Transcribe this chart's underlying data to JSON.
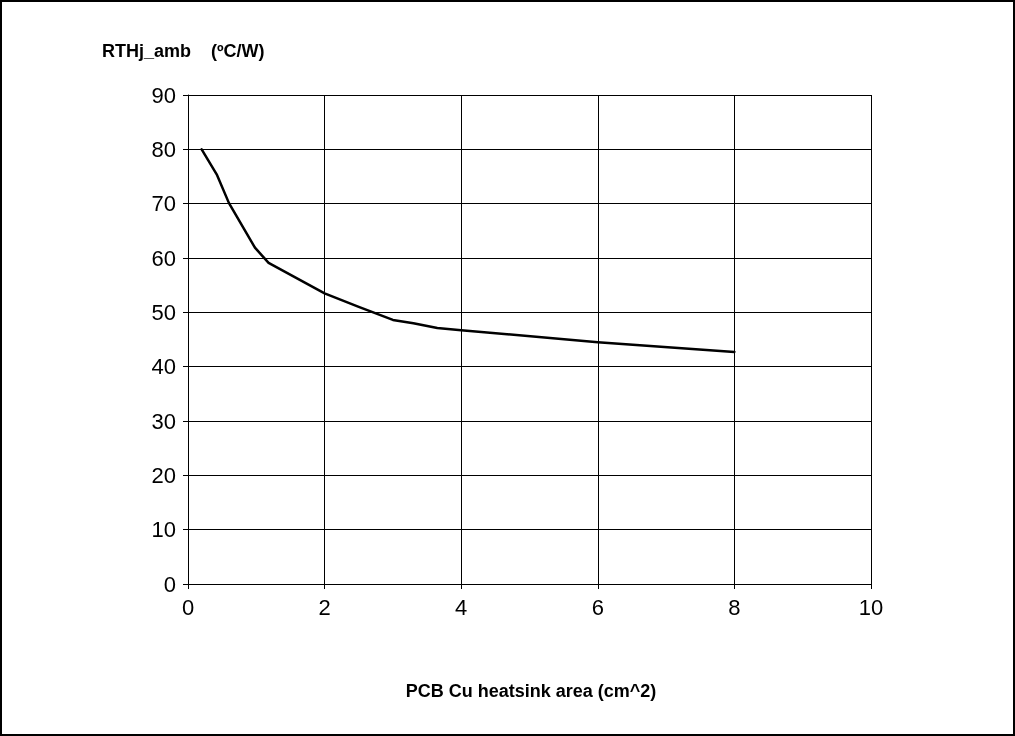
{
  "chart_data": {
    "type": "line",
    "ylabel": "RTHj_amb    (ºC/W)",
    "xlabel": "PCB Cu heatsink area (cm^2)",
    "series": [
      {
        "color": "#000000",
        "x": [
          0.2,
          0.42,
          0.6,
          0.98,
          1.18,
          2.0,
          2.5,
          3.0,
          3.3,
          3.65,
          4.0,
          6.0,
          8.0
        ],
        "values": [
          80,
          75.4,
          70.1,
          61.9,
          59.1,
          53.5,
          51,
          48.6,
          48,
          47.1,
          46.7,
          44.5,
          42.7
        ]
      }
    ],
    "xlim": [
      0,
      10
    ],
    "xticks": [
      0,
      2,
      4,
      6,
      8,
      10
    ],
    "ylim": [
      0,
      90
    ],
    "yticks": [
      0,
      10,
      20,
      30,
      40,
      50,
      60,
      70,
      80,
      90
    ],
    "grid": true,
    "marker": "none",
    "line_style": "solid"
  }
}
